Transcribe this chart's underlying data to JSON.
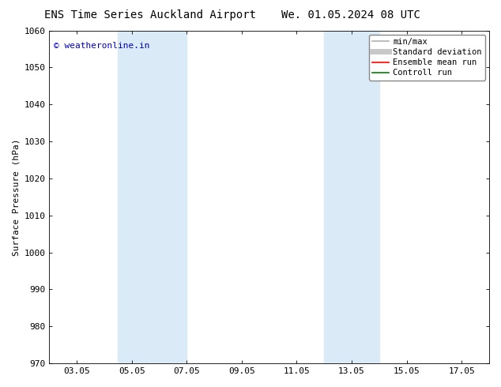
{
  "title_left": "ENS Time Series Auckland Airport",
  "title_right": "We. 01.05.2024 08 UTC",
  "ylabel": "Surface Pressure (hPa)",
  "ylim": [
    970,
    1060
  ],
  "yticks": [
    970,
    980,
    990,
    1000,
    1010,
    1020,
    1030,
    1040,
    1050,
    1060
  ],
  "xtick_labels": [
    "03.05",
    "05.05",
    "07.05",
    "09.05",
    "11.05",
    "13.05",
    "15.05",
    "17.05"
  ],
  "xtick_day_offsets": [
    2,
    4,
    6,
    8,
    10,
    12,
    14,
    16
  ],
  "shaded_bands": [
    {
      "x_start_day": 3.5,
      "x_end_day": 6.0,
      "color": "#daeaf7"
    },
    {
      "x_start_day": 11.0,
      "x_end_day": 13.0,
      "color": "#daeaf7"
    }
  ],
  "watermark_text": "© weatheronline.in",
  "watermark_color": "#0000cc",
  "background_color": "#ffffff",
  "legend_entries": [
    {
      "label": "min/max",
      "color": "#b0b0b0",
      "lw": 1.2
    },
    {
      "label": "Standard deviation",
      "color": "#c8c8c8",
      "lw": 5
    },
    {
      "label": "Ensemble mean run",
      "color": "#ff0000",
      "lw": 1.2
    },
    {
      "label": "Controll run",
      "color": "#008000",
      "lw": 1.2
    }
  ],
  "title_fontsize": 10,
  "axis_label_fontsize": 8,
  "tick_fontsize": 8,
  "legend_fontsize": 7.5,
  "watermark_fontsize": 8
}
